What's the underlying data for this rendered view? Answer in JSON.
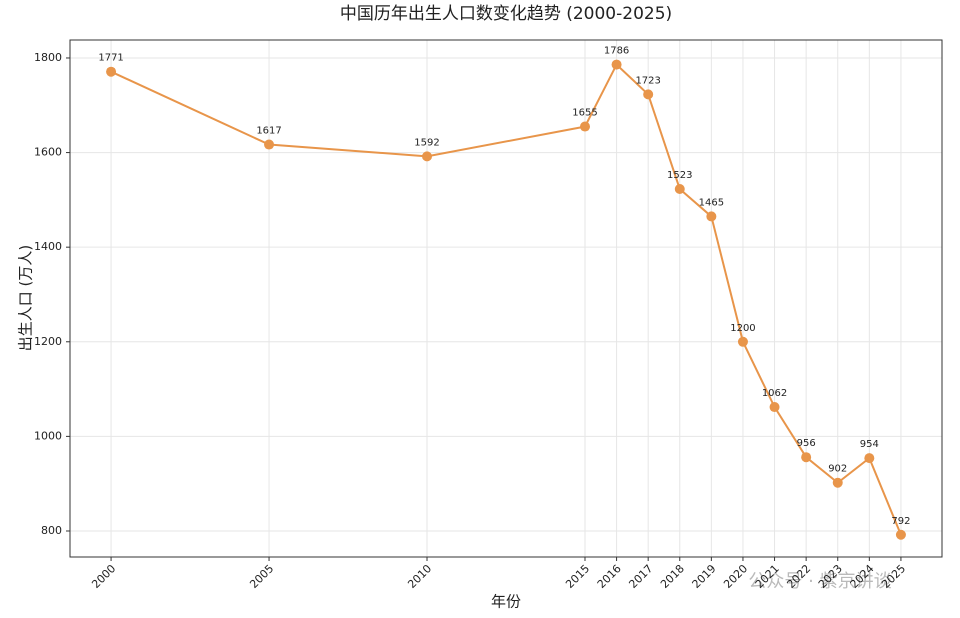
{
  "chart_data": {
    "type": "line",
    "title": "中国历年出生人口数变化趋势 (2000-2025)",
    "x_label": "年份",
    "y_label": "出生人口 (万人)",
    "watermark": "公众号 · 紫京讲谈",
    "x": [
      2000,
      2005,
      2010,
      2015,
      2016,
      2017,
      2018,
      2019,
      2020,
      2021,
      2022,
      2023,
      2024,
      2025
    ],
    "series": [
      {
        "name": "出生人口",
        "color": "#e8954a",
        "values": [
          1771,
          1617,
          1592,
          1655,
          1786,
          1723,
          1523,
          1465,
          1200,
          1062,
          956,
          902,
          954,
          792
        ]
      }
    ],
    "xlim": [
      1998.7,
      2026.3
    ],
    "xticks": [
      2000,
      2005,
      2010,
      2015,
      2016,
      2017,
      2018,
      2019,
      2020,
      2021,
      2022,
      2023,
      2024,
      2025
    ],
    "ylim": [
      745,
      1838
    ],
    "yticks": [
      800,
      1000,
      1200,
      1400,
      1600,
      1800
    ],
    "grid": true
  }
}
